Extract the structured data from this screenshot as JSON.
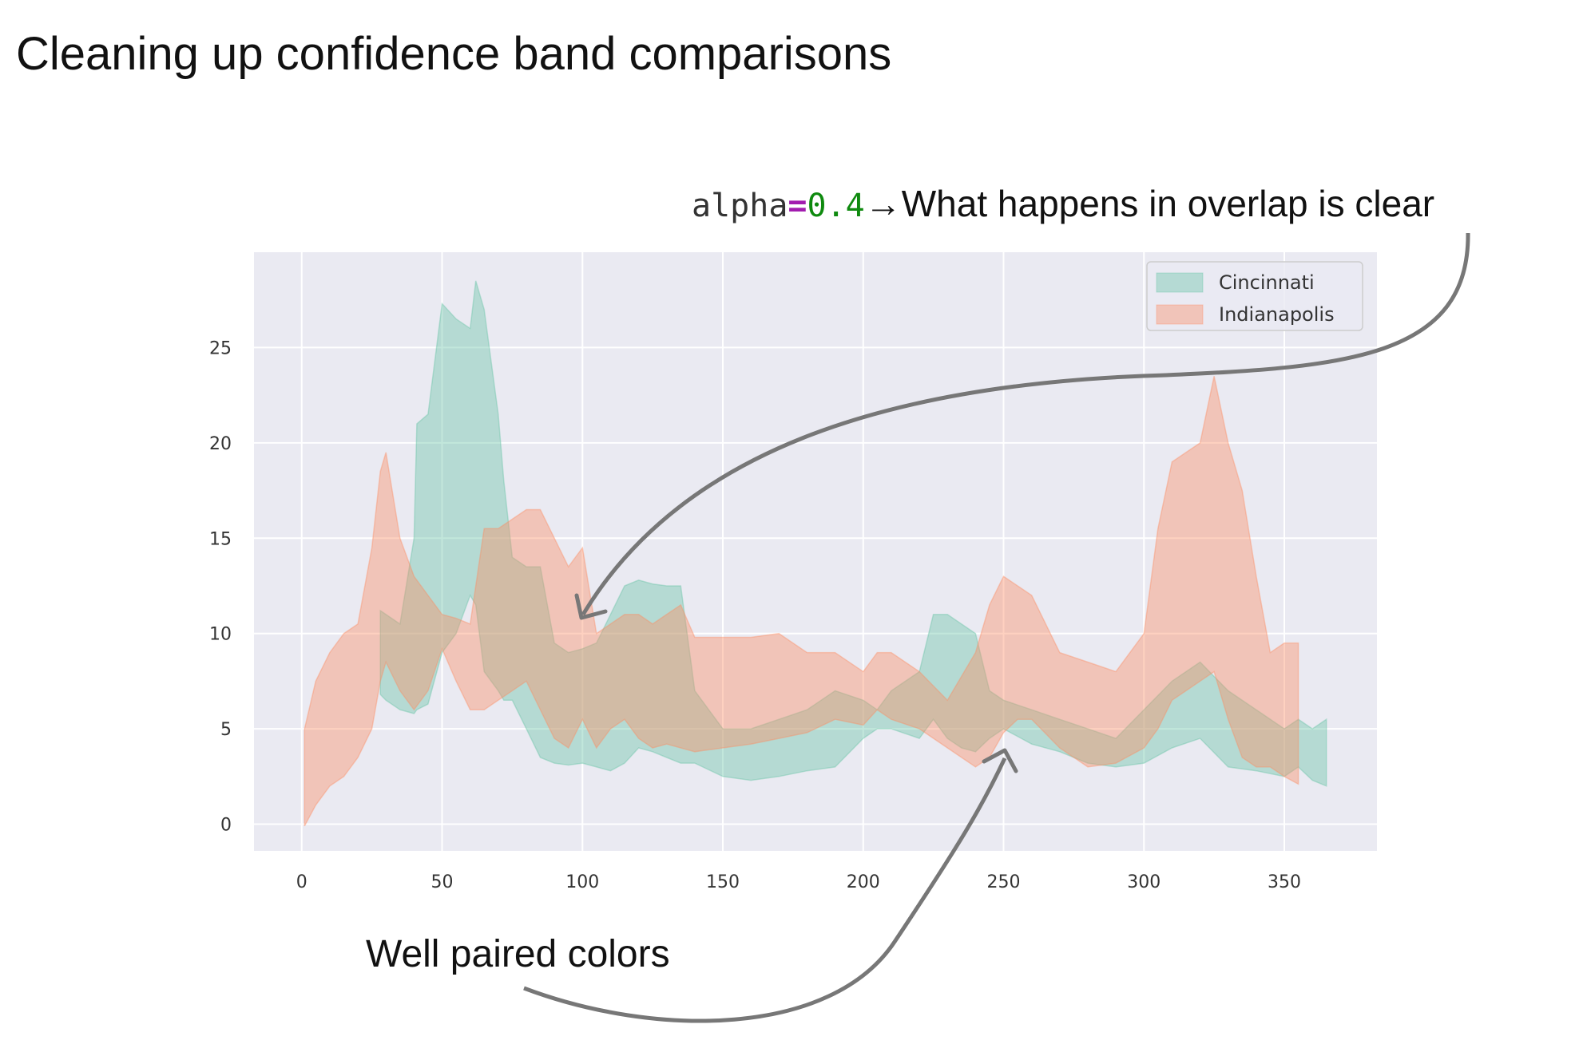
{
  "slide": {
    "title": "Cleaning up confidence band comparisons",
    "annotation_top": {
      "code_name": "alpha",
      "code_op": "=",
      "code_value": "0.4",
      "arrow": "→",
      "text": "What happens in overlap is clear"
    },
    "annotation_bottom": "Well paired colors"
  },
  "chart_data": {
    "type": "area",
    "title": "",
    "xlabel": "",
    "ylabel": "",
    "xlim": [
      -17,
      383
    ],
    "ylim": [
      -1.4,
      30.0
    ],
    "xticks": [
      0,
      50,
      100,
      150,
      200,
      250,
      300,
      350
    ],
    "yticks": [
      0,
      5,
      10,
      15,
      20,
      25
    ],
    "grid": true,
    "legend_position": "top-right",
    "background": "#eaeaf2",
    "annotation_arrow_color": "#777777",
    "series": [
      {
        "name": "Cincinnati",
        "color": "#66c2a5",
        "opacity": 0.4,
        "x": [
          28,
          30,
          35,
          40,
          41,
          45,
          50,
          55,
          60,
          62,
          65,
          70,
          72,
          75,
          80,
          85,
          90,
          95,
          100,
          105,
          110,
          115,
          120,
          125,
          130,
          135,
          140,
          150,
          160,
          170,
          180,
          190,
          200,
          205,
          210,
          220,
          225,
          230,
          235,
          240,
          245,
          250,
          260,
          270,
          280,
          290,
          300,
          310,
          320,
          330,
          340,
          350,
          355,
          360,
          365
        ],
        "upper": [
          11.2,
          11,
          10.5,
          15,
          21,
          21.5,
          27.3,
          26.5,
          26,
          28.5,
          27,
          21.5,
          18,
          14,
          13.5,
          13.5,
          9.5,
          9,
          9.2,
          9.5,
          11,
          12.5,
          12.8,
          12.6,
          12.5,
          12.5,
          7,
          5,
          5,
          5.5,
          6,
          7,
          6.5,
          6,
          7,
          8,
          11,
          11,
          10.5,
          10,
          7,
          6.5,
          6,
          5.5,
          5,
          4.5,
          6,
          7.5,
          8.5,
          7,
          6,
          5,
          5.5,
          5,
          5.5
        ],
        "lower": [
          6.8,
          6.5,
          6,
          5.8,
          6,
          6.3,
          9,
          10,
          12,
          11.5,
          8,
          7,
          6.5,
          6.5,
          5,
          3.5,
          3.2,
          3.1,
          3.2,
          3,
          2.8,
          3.2,
          4,
          3.8,
          3.5,
          3.2,
          3.2,
          2.5,
          2.3,
          2.5,
          2.8,
          3,
          4.5,
          5,
          5,
          4.5,
          5.5,
          4.5,
          4,
          3.8,
          4.5,
          5,
          4.2,
          3.8,
          3.2,
          3,
          3.2,
          4,
          4.5,
          3,
          2.8,
          2.5,
          3,
          2.3,
          2
        ],
        "legend": "Cincinnati"
      },
      {
        "name": "Indianapolis",
        "color": "#fc8d62",
        "opacity": 0.4,
        "x": [
          1,
          5,
          10,
          15,
          20,
          25,
          28,
          30,
          35,
          40,
          45,
          50,
          55,
          60,
          65,
          70,
          75,
          80,
          85,
          90,
          95,
          100,
          105,
          110,
          115,
          120,
          125,
          130,
          135,
          140,
          150,
          160,
          170,
          180,
          190,
          200,
          205,
          210,
          220,
          230,
          240,
          245,
          250,
          255,
          260,
          270,
          280,
          290,
          300,
          305,
          310,
          315,
          320,
          325,
          330,
          335,
          340,
          345,
          350,
          355
        ],
        "upper": [
          5,
          7.5,
          9,
          10,
          10.5,
          14.5,
          18.5,
          19.5,
          15,
          13,
          12,
          11,
          10.8,
          10.5,
          15.5,
          15.5,
          16,
          16.5,
          16.5,
          15,
          13.5,
          14.5,
          10,
          10.5,
          11,
          11,
          10.5,
          11,
          11.5,
          9.8,
          9.8,
          9.8,
          10,
          9,
          9,
          8,
          9,
          9,
          8,
          6.5,
          9,
          11.5,
          13,
          12.5,
          12,
          9,
          8.5,
          8,
          10,
          15.5,
          19,
          19.5,
          20,
          23.5,
          20,
          17.5,
          13,
          9,
          9.5,
          9.5
        ],
        "lower": [
          -0.1,
          1,
          2,
          2.5,
          3.5,
          5,
          7.5,
          8.5,
          7,
          6,
          7,
          9.2,
          7.5,
          6,
          6,
          6.5,
          7,
          7.5,
          6,
          4.5,
          4,
          5.5,
          4,
          5,
          5.5,
          4.5,
          4,
          4.2,
          4,
          3.8,
          4,
          4.2,
          4.5,
          4.8,
          5.5,
          5.2,
          6,
          5.5,
          5,
          4,
          3,
          3.5,
          4.8,
          5.5,
          5.5,
          4,
          3,
          3.2,
          4,
          5,
          6.5,
          7,
          7.5,
          8,
          5.5,
          3.5,
          3,
          3,
          2.5,
          2.1
        ],
        "legend": "Indianapolis"
      }
    ]
  }
}
